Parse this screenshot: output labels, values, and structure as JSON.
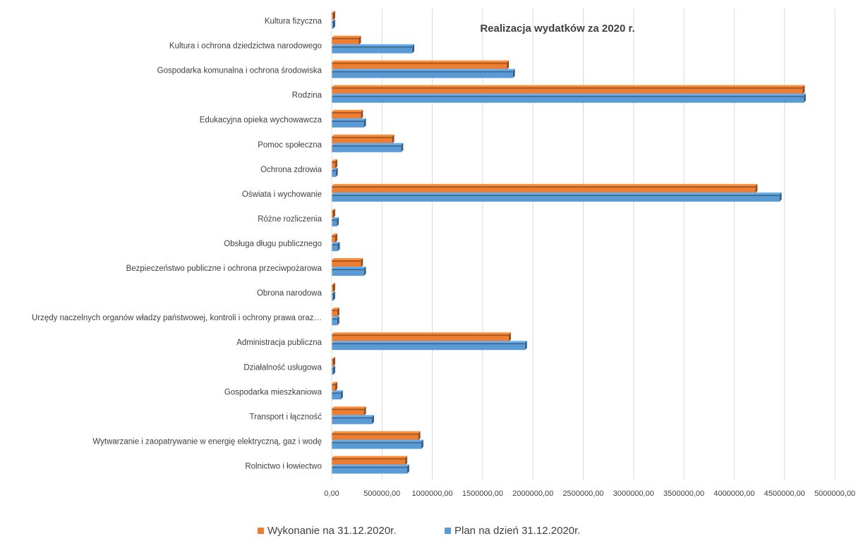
{
  "chart_data": {
    "type": "bar",
    "orientation": "horizontal",
    "title": "Realizacja wydatków za 2020 r.",
    "categories": [
      "Kultura fizyczna",
      "Kultura i ochrona dziedzictwa narodowego",
      "Gospodarka komunalna i ochrona środowiska",
      "Rodzina",
      "Edukacyjna opieka wychowawcza",
      "Pomoc społeczna",
      "Ochrona zdrowia",
      "Oświata i wychowanie",
      "Różne rozliczenia",
      "Obsługa długu publicznego",
      "Bezpieczeństwo publiczne i ochrona przeciwpożarowa",
      "Obrona narodowa",
      "Urzędy naczelnych organów władzy państwowej, kontroli i ochrony prawa oraz…",
      "Administracja publiczna",
      "Działalność usługowa",
      "Gospodarka mieszkaniowa",
      "Transport i łączność",
      "Wytwarzanie i zaopatrywanie w energię elektryczną, gaz i wodę",
      "Rolnictwo i łowiectwo"
    ],
    "series": [
      {
        "name": "Wykonanie na 31.12.2020r.",
        "color": "#ED7D31",
        "values": [
          5000,
          270000,
          1740000,
          4680000,
          290000,
          600000,
          35000,
          4210000,
          10000,
          35000,
          290000,
          5000,
          55000,
          1760000,
          8000,
          35000,
          320000,
          860000,
          730000
        ]
      },
      {
        "name": "Plan na dzień 31.12.2020r.",
        "color": "#5B9BD5",
        "values": [
          5000,
          800000,
          1800000,
          4690000,
          320000,
          690000,
          40000,
          4450000,
          50000,
          60000,
          320000,
          5000,
          55000,
          1920000,
          10000,
          90000,
          400000,
          890000,
          750000
        ]
      }
    ],
    "xlim": [
      0,
      5000000
    ],
    "xticks": [
      0,
      500000,
      1000000,
      1500000,
      2000000,
      2500000,
      3000000,
      3500000,
      4000000,
      4500000,
      5000000
    ],
    "xtick_labels": [
      "0,00",
      "500000,00",
      "1000000,00",
      "1500000,00",
      "2000000,00",
      "2500000,00",
      "3000000,00",
      "3500000,00",
      "4000000,00",
      "4500000,00",
      "5000000,00"
    ],
    "grid": "vertical",
    "legend": "bottom-center",
    "legend_items": [
      "Wykonanie na 31.12.2020r.",
      "Plan na dzień 31.12.2020r."
    ]
  }
}
